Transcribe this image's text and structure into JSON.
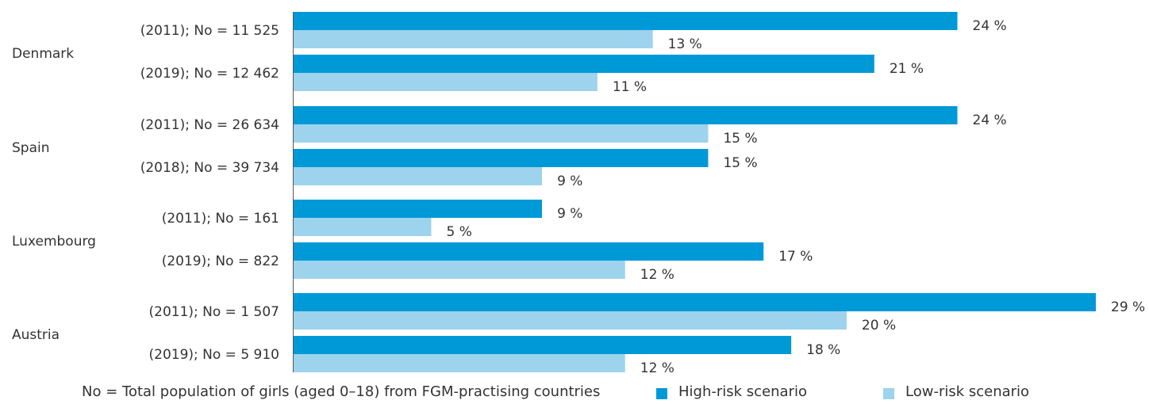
{
  "chart_data": {
    "type": "bar",
    "orientation": "horizontal",
    "groups": [
      {
        "country": "Denmark",
        "rows": [
          {
            "label": "(2011); No = 11 525",
            "high": 24,
            "low": 13
          },
          {
            "label": "(2019); No = 12 462",
            "high": 21,
            "low": 11
          }
        ]
      },
      {
        "country": "Spain",
        "rows": [
          {
            "label": "(2011); No = 26 634",
            "high": 24,
            "low": 15
          },
          {
            "label": "(2018); No = 39 734",
            "high": 15,
            "low": 9
          }
        ]
      },
      {
        "country": "Luxembourg",
        "rows": [
          {
            "label": "(2011); No = 161",
            "high": 9,
            "low": 5
          },
          {
            "label": "(2019); No = 822",
            "high": 17,
            "low": 12
          }
        ]
      },
      {
        "country": "Austria",
        "rows": [
          {
            "label": "(2011); No = 1 507",
            "high": 29,
            "low": 20
          },
          {
            "label": "(2019); No = 5 910",
            "high": 18,
            "low": 12
          }
        ]
      }
    ],
    "series": [
      {
        "key": "high",
        "name": "High-risk scenario",
        "color": "#0099d8"
      },
      {
        "key": "low",
        "name": "Low-risk scenario",
        "color": "#9dd3ec"
      }
    ],
    "value_suffix": " %",
    "xlim": [
      0,
      30
    ],
    "grid": false,
    "legend_position": "bottom"
  },
  "footnote": "No = Total population of girls (aged 0–18) from FGM-practising countries"
}
